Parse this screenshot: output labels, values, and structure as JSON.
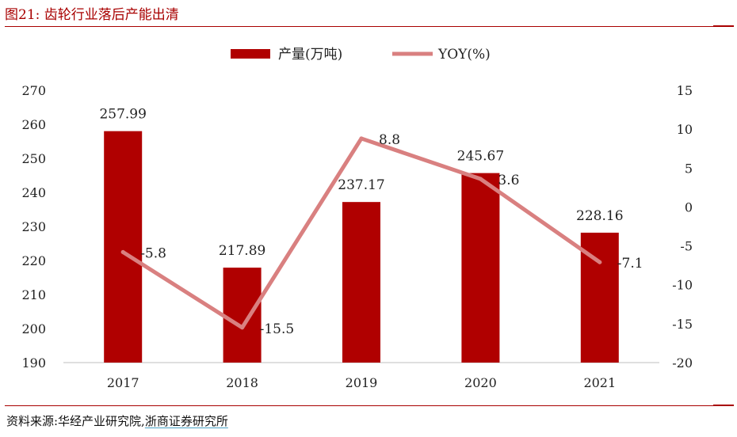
{
  "figure": {
    "title": "图21:  齿轮行业落后产能出清",
    "source_prefix": "资料来源:华经产业研究院,",
    "source_publisher": "浙商证券研究所"
  },
  "colors": {
    "bar": "#b00000",
    "line": "#d98080",
    "rule": "#a80000",
    "axis": "#bfbfbf"
  },
  "chart_data": {
    "type": "bar",
    "categories": [
      "2017",
      "2018",
      "2019",
      "2020",
      "2021"
    ],
    "series": [
      {
        "name": "产量(万吨)",
        "type": "bar",
        "axis": "left",
        "values": [
          257.99,
          217.89,
          237.17,
          245.67,
          228.16
        ],
        "labels": [
          "257.99",
          "217.89",
          "237.17",
          "245.67",
          "228.16"
        ]
      },
      {
        "name": "YOY(%)",
        "type": "line",
        "axis": "right",
        "values": [
          -5.8,
          -15.5,
          8.8,
          3.6,
          -7.1
        ],
        "labels": [
          "-5.8",
          "-15.5",
          "8.8",
          "3.6",
          "-7.1"
        ]
      }
    ],
    "y_left": {
      "min": 190,
      "max": 270,
      "ticks": [
        "190",
        "200",
        "210",
        "220",
        "230",
        "240",
        "250",
        "260",
        "270"
      ]
    },
    "y_right": {
      "min": -20,
      "max": 15,
      "ticks": [
        "-20",
        "-15",
        "-10",
        "-5",
        "0",
        "5",
        "10",
        "15"
      ]
    },
    "legend_position": "top-center",
    "grid": false
  }
}
